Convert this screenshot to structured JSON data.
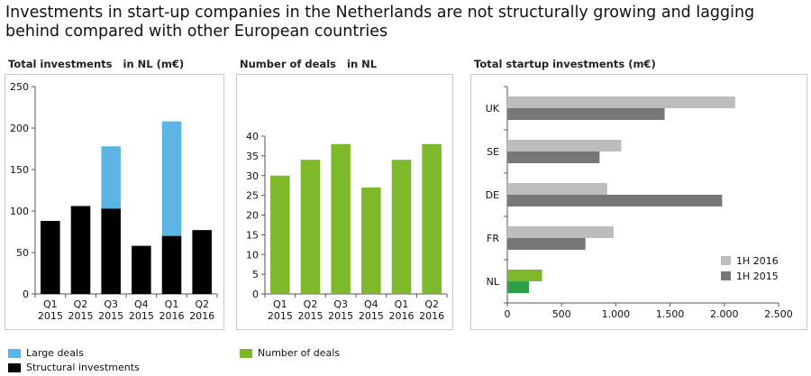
{
  "headline": "Investments in start-up companies in the Netherlands are not structurally growing and lagging behind compared with other European countries",
  "panels": {
    "p1_title": "Total investments   in NL (m€)",
    "p2_title": "Number of deals   in NL",
    "p3_title": "Total startup investments (m€)"
  },
  "legends": {
    "large": "Large deals",
    "structural": "Structural investments",
    "deals": "Number of deals"
  },
  "colors": {
    "structural": "#000000",
    "large": "#5cb4e4",
    "deals": "#7db92a",
    "h2016": "#bdbdbd",
    "h2015": "#777777",
    "nl2016": "#7db92a",
    "nl2015": "#2e9e49"
  },
  "chart_data": [
    {
      "type": "bar",
      "stacked": true,
      "categories": [
        [
          "Q1",
          "2015"
        ],
        [
          "Q2",
          "2015"
        ],
        [
          "Q3",
          "2015"
        ],
        [
          "Q4",
          "2015"
        ],
        [
          "Q1",
          "2016"
        ],
        [
          "Q2",
          "2016"
        ]
      ],
      "series": [
        {
          "name": "Structural investments",
          "values": [
            88,
            106,
            103,
            58,
            70,
            77
          ]
        },
        {
          "name": "Large deals",
          "values": [
            0,
            0,
            75,
            0,
            138,
            0
          ]
        }
      ],
      "yticks": [
        "0",
        "50",
        "100",
        "150",
        "200",
        "250"
      ],
      "ylim": [
        0,
        250
      ]
    },
    {
      "type": "bar",
      "categories": [
        [
          "Q1",
          "2015"
        ],
        [
          "Q2",
          "2015"
        ],
        [
          "Q3",
          "2015"
        ],
        [
          "Q4",
          "2015"
        ],
        [
          "Q1",
          "2016"
        ],
        [
          "Q2",
          "2016"
        ]
      ],
      "series": [
        {
          "name": "Number of deals",
          "values": [
            30,
            34,
            38,
            27,
            34,
            38
          ]
        }
      ],
      "yticks": [
        "0",
        "5",
        "10",
        "15",
        "20",
        "25",
        "30",
        "35",
        "40"
      ],
      "ylim": [
        0,
        40
      ]
    },
    {
      "type": "bar",
      "orientation": "horizontal",
      "categories": [
        "UK",
        "SE",
        "DE",
        "FR",
        "NL"
      ],
      "series": [
        {
          "name": "1H 2016",
          "values": [
            2100,
            1050,
            920,
            980,
            320
          ]
        },
        {
          "name": "1H 2015",
          "values": [
            1450,
            850,
            1980,
            720,
            200
          ]
        }
      ],
      "xticks": [
        "0",
        "500",
        "1.000",
        "1.500",
        "2.000",
        "2.500"
      ],
      "xlim": [
        0,
        2500
      ],
      "legend_position": "bottom-right"
    }
  ]
}
